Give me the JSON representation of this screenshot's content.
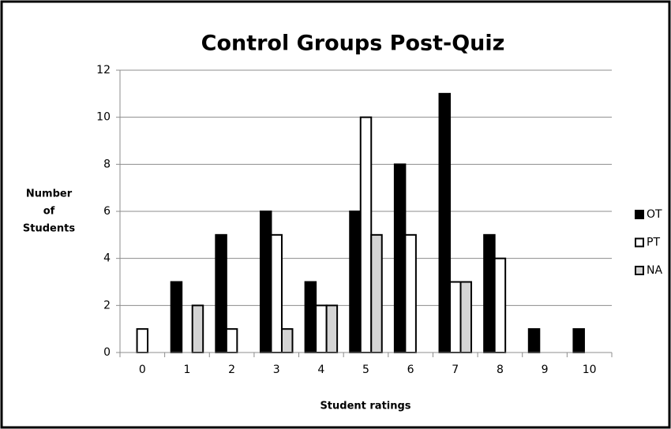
{
  "chart_data": {
    "type": "bar",
    "title": "Control Groups Post-Quiz",
    "x_label": "Student ratings",
    "y_label": [
      "Number",
      "of",
      "Students"
    ],
    "categories": [
      "0",
      "1",
      "2",
      "3",
      "4",
      "5",
      "6",
      "7",
      "8",
      "9",
      "10"
    ],
    "series": [
      {
        "name": "OT",
        "color": "#000000",
        "values": [
          0,
          3,
          5,
          6,
          3,
          6,
          8,
          11,
          5,
          1,
          1
        ]
      },
      {
        "name": "PT",
        "color": "#ffffff",
        "values": [
          1,
          0,
          1,
          5,
          2,
          10,
          5,
          3,
          4,
          0,
          0
        ]
      },
      {
        "name": "NA",
        "color": "#d4d4d4",
        "values": [
          0,
          2,
          0,
          1,
          2,
          5,
          0,
          3,
          0,
          0,
          0
        ]
      }
    ],
    "ylim": [
      0,
      12
    ],
    "yticks": [
      0,
      2,
      4,
      6,
      8,
      10,
      12
    ],
    "grid": true,
    "legend": "right"
  }
}
